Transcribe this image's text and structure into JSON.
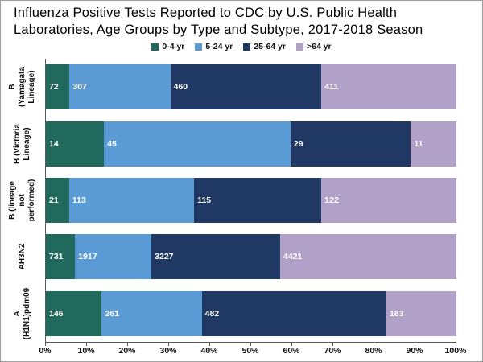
{
  "title": "Influenza Positive Tests Reported to CDC by U.S. Public Health Laboratories, Age Groups by Type and Subtype, 2017-2018 Season",
  "chart_data": {
    "type": "bar",
    "orientation": "horizontal",
    "stacked": true,
    "percent_stacked": true,
    "title": "Influenza Positive Tests Reported to CDC by U.S. Public Health Laboratories, Age Groups by Type and Subtype, 2017-2018 Season",
    "categories_top_to_bottom": [
      "B (Yamagata Lineage)",
      "B (Victoria Lineage)",
      "B (lineage not performed)",
      "AH3N2",
      "A (H1N1)pdm09"
    ],
    "series": [
      {
        "name": "0-4 yr",
        "color": "#20695C",
        "values": [
          72,
          14,
          21,
          731,
          146
        ]
      },
      {
        "name": "5-24 yr",
        "color": "#5B9BD5",
        "values": [
          307,
          45,
          113,
          1917,
          261
        ]
      },
      {
        "name": "25-64 yr",
        "color": "#1F3864",
        "values": [
          460,
          29,
          115,
          3227,
          482
        ]
      },
      {
        "name": ">64 yr",
        "color": "#B1A0C7",
        "values": [
          411,
          11,
          122,
          4421,
          183
        ]
      }
    ],
    "x_axis": {
      "min": 0,
      "max": 100,
      "ticks": [
        "0%",
        "10%",
        "20%",
        "30%",
        "40%",
        "50%",
        "60%",
        "70%",
        "80%",
        "90%",
        "100%"
      ]
    },
    "legend_position": "top",
    "grid": false,
    "data_label_color": "#FFFFFF"
  }
}
